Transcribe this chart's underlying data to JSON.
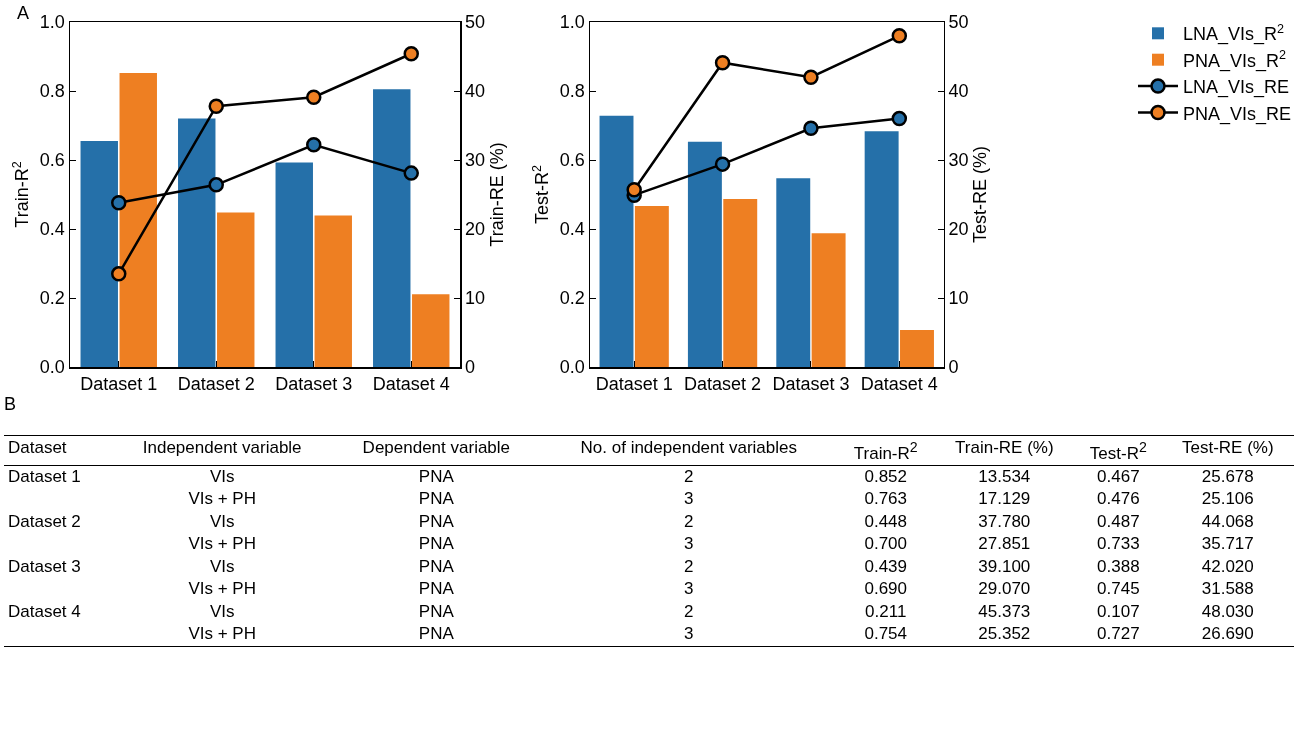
{
  "chart_data": [
    {
      "type": "bar",
      "title": "A",
      "categories": [
        "Dataset 1",
        "Dataset 2",
        "Dataset 3",
        "Dataset 4"
      ],
      "ylabel": "Train-R$^{2}$",
      "y2label": "Train-RE (%)",
      "ylim": [
        0,
        1
      ],
      "yticks": [
        "0.0",
        0.2,
        0.4,
        0.6,
        0.8,
        "1.0"
      ],
      "y2lim": [
        0,
        50
      ],
      "y2ticks": [
        0,
        10,
        20,
        30,
        40,
        50
      ],
      "legend": false,
      "grid": false,
      "marker": "circle",
      "series": [
        {
          "color": "#2570a9",
          "values": [
            0.655,
            0.72,
            0.593,
            0.805
          ]
        },
        {
          "color": "#ee7f22",
          "values": [
            0.852,
            0.448,
            0.439,
            0.211
          ]
        },
        {
          "type": "line",
          "axis": "y2",
          "color": "#2570a9",
          "values": [
            23.8,
            26.4,
            32.2,
            28.1
          ]
        },
        {
          "type": "line",
          "axis": "y2",
          "color": "#ee7f22",
          "values": [
            13.5,
            37.8,
            39.1,
            45.4
          ]
        }
      ]
    },
    {
      "type": "bar",
      "categories": [
        "Dataset 1",
        "Dataset 2",
        "Dataset 3",
        "Dataset 4"
      ],
      "ylabel": "Test-R$^{2}$",
      "y2label": "Test-RE (%)",
      "ylim": [
        0,
        1
      ],
      "yticks": [
        "0.0",
        0.2,
        0.4,
        0.6,
        0.8,
        "1.0"
      ],
      "y2lim": [
        0,
        50
      ],
      "y2ticks": [
        0,
        10,
        20,
        30,
        40,
        50
      ],
      "legend": "right",
      "grid": false,
      "marker": "circle",
      "series": [
        {
          "name": "LNA_VIs_R$^{2}$",
          "color": "#2570a9",
          "values": [
            0.728,
            0.653,
            0.547,
            0.683
          ]
        },
        {
          "name": "PNA_VIs_R$^{2}$",
          "color": "#ee7f22",
          "values": [
            0.467,
            0.487,
            0.388,
            0.107
          ]
        },
        {
          "name": "LNA_VIs_RE",
          "type": "line",
          "axis": "y2",
          "color": "#2570a9",
          "values": [
            24.9,
            29.4,
            34.6,
            36.0
          ]
        },
        {
          "name": "PNA_VIs_RE",
          "type": "line",
          "axis": "y2",
          "color": "#ee7f22",
          "values": [
            25.7,
            44.1,
            42.0,
            48.0
          ]
        }
      ]
    },
    {
      "type": "other",
      "title": "B",
      "categories": [
        "Dataset",
        "Independent variable",
        "Dependent variable",
        "No. of independent variables",
        "Train-R$^{2}$",
        "Train-RE (%)",
        "Test-R$^{2}$",
        "Test-RE (%)"
      ],
      "cell_labels": [
        [
          "Dataset 1",
          "VIs",
          "PNA",
          "2",
          "0.852",
          "13.534",
          "0.467",
          "25.678"
        ],
        [
          null,
          "VIs + PH",
          "PNA",
          "3",
          "0.763",
          "17.129",
          "0.476",
          "25.106"
        ],
        [
          "Dataset 2",
          "VIs",
          "PNA",
          "2",
          "0.448",
          "37.780",
          "0.487",
          "44.068"
        ],
        [
          null,
          "VIs + PH",
          "PNA",
          "3",
          "0.700",
          "27.851",
          "0.733",
          "35.717"
        ],
        [
          "Dataset 3",
          "VIs",
          "PNA",
          "2",
          "0.439",
          "39.100",
          "0.388",
          "42.020"
        ],
        [
          null,
          "VIs + PH",
          "PNA",
          "3",
          "0.690",
          "29.070",
          "0.745",
          "31.588"
        ],
        [
          "Dataset 4",
          "VIs",
          "PNA",
          "2",
          "0.211",
          "45.373",
          "0.107",
          "48.030"
        ],
        [
          null,
          "VIs + PH",
          "PNA",
          "3",
          "0.754",
          "25.352",
          "0.727",
          "26.690"
        ]
      ]
    }
  ]
}
